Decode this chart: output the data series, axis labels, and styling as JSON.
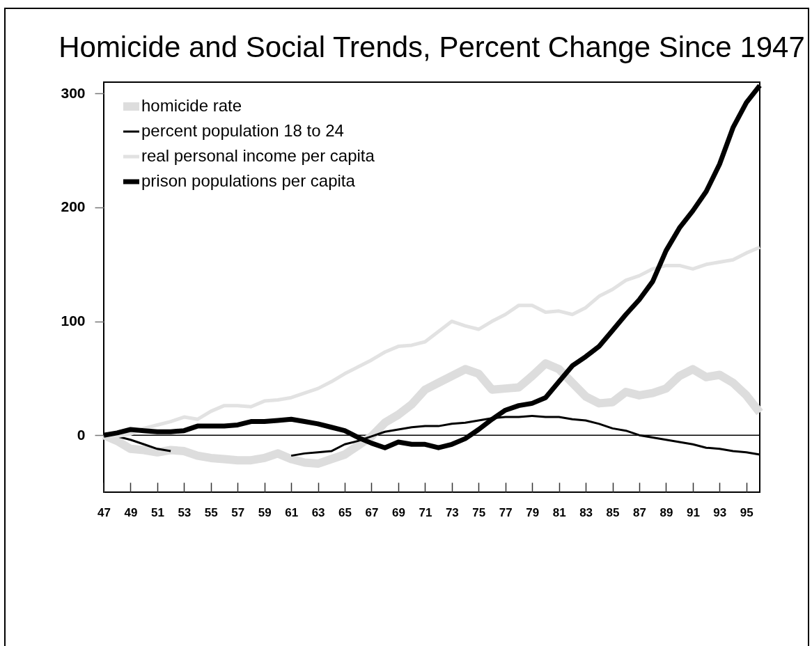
{
  "chart_data": {
    "type": "line",
    "title": "Homicide and Social Trends, Percent Change Since 1947",
    "x": [
      47,
      48,
      49,
      50,
      51,
      52,
      53,
      54,
      55,
      56,
      57,
      58,
      59,
      60,
      61,
      62,
      63,
      64,
      65,
      66,
      67,
      68,
      69,
      70,
      71,
      72,
      73,
      74,
      75,
      76,
      77,
      78,
      79,
      80,
      81,
      82,
      83,
      84,
      85,
      86,
      87,
      88,
      89,
      90,
      91,
      92,
      93,
      94,
      95,
      96
    ],
    "xlim": [
      47,
      96
    ],
    "xticks": [
      47,
      49,
      51,
      53,
      55,
      57,
      59,
      61,
      63,
      65,
      67,
      69,
      71,
      73,
      75,
      77,
      79,
      81,
      83,
      85,
      87,
      89,
      91,
      93,
      95
    ],
    "ylim": [
      -50,
      310
    ],
    "yticks": [
      0,
      100,
      200,
      300
    ],
    "legend": "top left",
    "ref_lines": [
      {
        "axis": "y",
        "value": 0,
        "color": "#000000"
      }
    ],
    "series": [
      {
        "name": "homicide rate",
        "color": "#dddddd",
        "values": [
          0,
          -5,
          -12,
          -13,
          -15,
          -13,
          -14,
          -18,
          -20,
          -21,
          -22,
          -22,
          -20,
          -16,
          -21,
          -24,
          -25,
          -21,
          -17,
          -9,
          -1,
          11,
          18,
          27,
          40,
          46,
          52,
          58,
          54,
          40,
          41,
          42,
          52,
          63,
          58,
          46,
          34,
          28,
          29,
          38,
          35,
          37,
          41,
          52,
          58,
          51,
          53,
          46,
          35,
          20
        ]
      },
      {
        "name": "percent population 18 to 24",
        "color": "#000000",
        "values": [
          0,
          -1,
          -4,
          -8,
          -12,
          -14,
          null,
          null,
          null,
          null,
          null,
          null,
          null,
          null,
          -18,
          -16,
          -15,
          -14,
          -8,
          -5,
          -1,
          3,
          5,
          7,
          8,
          8,
          10,
          11,
          13,
          15,
          16,
          16,
          17,
          16,
          16,
          14,
          13,
          10,
          6,
          4,
          0,
          -2,
          -4,
          -6,
          -8,
          -11,
          -12,
          -14,
          -15,
          -17
        ]
      },
      {
        "name": "real personal income per capita",
        "color": "#e2e2e2",
        "values": [
          0,
          -1,
          1,
          6,
          9,
          12,
          16,
          14,
          21,
          26,
          26,
          25,
          30,
          31,
          33,
          37,
          41,
          47,
          54,
          60,
          66,
          73,
          78,
          79,
          82,
          91,
          100,
          96,
          93,
          100,
          106,
          114,
          114,
          108,
          109,
          106,
          112,
          122,
          128,
          136,
          140,
          146,
          149,
          149,
          146,
          150,
          152,
          154,
          160,
          165
        ]
      },
      {
        "name": "prison populations per capita",
        "color": "#000000",
        "values": [
          0,
          2,
          5,
          4,
          3,
          3,
          4,
          8,
          8,
          8,
          9,
          12,
          12,
          13,
          14,
          12,
          10,
          7,
          4,
          -2,
          -7,
          -11,
          -6,
          -8,
          -8,
          -11,
          -8,
          -3,
          5,
          14,
          22,
          26,
          28,
          33,
          47,
          61,
          69,
          78,
          92,
          106,
          119,
          135,
          162,
          182,
          197,
          214,
          238,
          270,
          292,
          307
        ]
      }
    ]
  }
}
